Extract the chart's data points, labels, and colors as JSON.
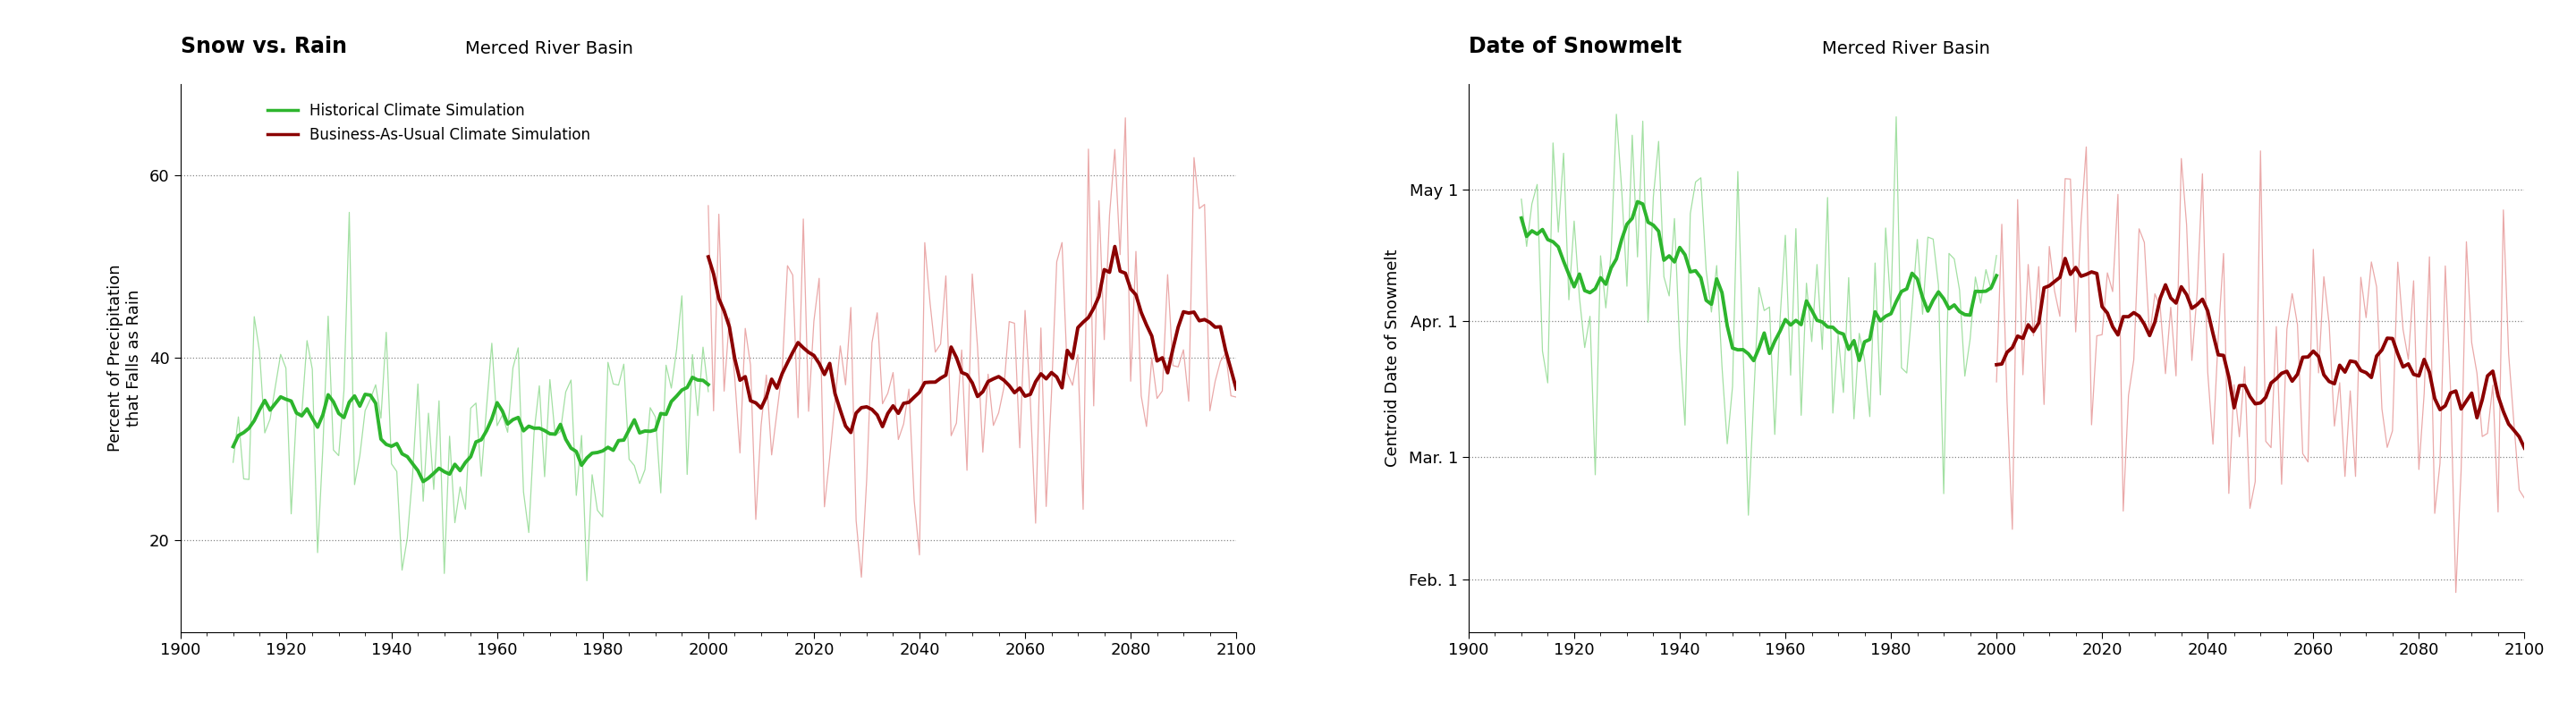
{
  "chart1": {
    "title_bold": "Snow vs. Rain",
    "title_normal": "Merced River Basin",
    "ylabel": "Percent of Precipitation\nthat Falls as Rain",
    "xlim": [
      1900,
      2100
    ],
    "ylim": [
      10,
      70
    ],
    "yticks": [
      20,
      40,
      60
    ],
    "xticks": [
      1900,
      1920,
      1940,
      1960,
      1980,
      2000,
      2020,
      2040,
      2060,
      2080,
      2100
    ],
    "hist_color": "#2db52d",
    "hist_raw_color": "#99dd99",
    "future_color": "#8b0000",
    "future_raw_color": "#e8a0a0",
    "legend_entries": [
      "Historical Climate Simulation",
      "Business-As-Usual Climate Simulation"
    ],
    "hist_start": 1910,
    "hist_end": 2000,
    "future_start": 2000,
    "future_end": 2100
  },
  "chart2": {
    "title_bold": "Date of Snowmelt",
    "title_normal": "Merced River Basin",
    "ylabel": "Centroid Date of Snowmelt",
    "xlim": [
      1900,
      2100
    ],
    "ylim": [
      20,
      145
    ],
    "ytick_labels": [
      "Feb. 1",
      "Mar. 1",
      "Apr. 1",
      "May 1"
    ],
    "ytick_values": [
      32,
      60,
      91,
      121
    ],
    "xticks": [
      1900,
      1920,
      1940,
      1960,
      1980,
      2000,
      2020,
      2040,
      2060,
      2080,
      2100
    ],
    "hist_color": "#2db52d",
    "hist_raw_color": "#99dd99",
    "future_color": "#8b0000",
    "future_raw_color": "#e8a0a0",
    "hist_start": 1910,
    "hist_end": 2000,
    "future_start": 2000,
    "future_end": 2100
  }
}
